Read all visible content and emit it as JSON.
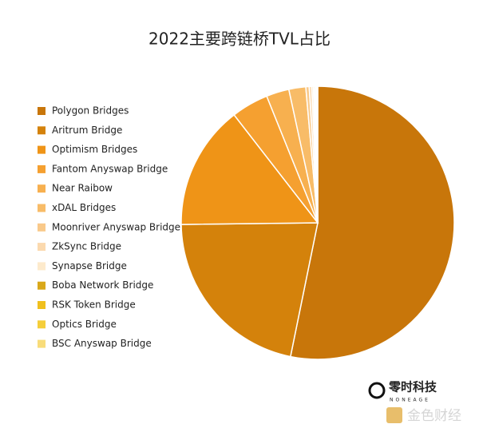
{
  "chart_data": {
    "type": "pie",
    "title": "2022主要跨链桥TVL占比",
    "categories": [
      "Polygon Bridges",
      "Aritrum Bridge",
      "Optimism Bridges",
      "Fantom Anyswap Bridge",
      "Near Raibow",
      "xDAL Bridges",
      "Moonriver Anyswap Bridge",
      "ZkSync Bridge",
      "Synapse Bridge",
      "Boba Network Bridge",
      "RSK Token Bridge",
      "Optics Bridge",
      "BSC Anyswap Bridge"
    ],
    "values": [
      53.2,
      21.6,
      14.7,
      4.4,
      2.7,
      2.0,
      0.4,
      0.3,
      0.2,
      0.15,
      0.15,
      0.1,
      0.1
    ],
    "colors": [
      "#c8760a",
      "#d4820b",
      "#ef9417",
      "#f5a030",
      "#f7b04f",
      "#f8bc68",
      "#f9c98a",
      "#fbd9ae",
      "#fdeacc",
      "#d9a81a",
      "#f0c01e",
      "#f5ce3a",
      "#f8dc7a"
    ],
    "legend": "left"
  },
  "watermarks": {
    "brand": "零时科技",
    "brand_sub": "NONEAGE",
    "source": "金色财经"
  }
}
